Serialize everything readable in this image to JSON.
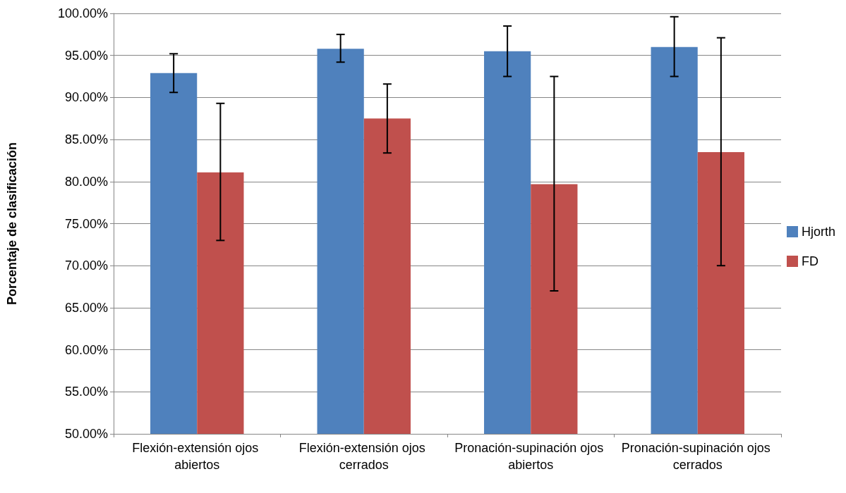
{
  "chart_data": {
    "type": "bar",
    "ylabel": "Porcentaje de clasificación",
    "categories": [
      "Flexión-extensión ojos abiertos",
      "Flexión-extensión ojos cerrados",
      "Pronación-supinación ojos abiertos",
      "Pronación-supinación ojos cerrados"
    ],
    "series": [
      {
        "name": "Hjorth",
        "color": "#4f81bd",
        "values": [
          92.9,
          95.8,
          95.5,
          96.0
        ],
        "errors": [
          [
            90.6,
            95.2
          ],
          [
            94.2,
            97.5
          ],
          [
            92.5,
            98.5
          ],
          [
            92.5,
            99.6
          ]
        ]
      },
      {
        "name": "FD",
        "color": "#c0504d",
        "values": [
          81.1,
          87.5,
          79.7,
          83.5
        ],
        "errors": [
          [
            73.0,
            89.3
          ],
          [
            83.4,
            91.6
          ],
          [
            67.0,
            92.5
          ],
          [
            70.0,
            97.1
          ]
        ]
      }
    ],
    "ylim": [
      50,
      100
    ],
    "yticks": [
      {
        "value": 50,
        "label": "50.00%"
      },
      {
        "value": 55,
        "label": "55.00%"
      },
      {
        "value": 60,
        "label": "60.00%"
      },
      {
        "value": 65,
        "label": "65.00%"
      },
      {
        "value": 70,
        "label": "70.00%"
      },
      {
        "value": 75,
        "label": "75.00%"
      },
      {
        "value": 80,
        "label": "80.00%"
      },
      {
        "value": 85,
        "label": "85.00%"
      },
      {
        "value": 90,
        "label": "90.00%"
      },
      {
        "value": 95,
        "label": "95.00%"
      },
      {
        "value": 100,
        "label": "100.00%"
      }
    ],
    "grid": "y",
    "legend": "right"
  }
}
